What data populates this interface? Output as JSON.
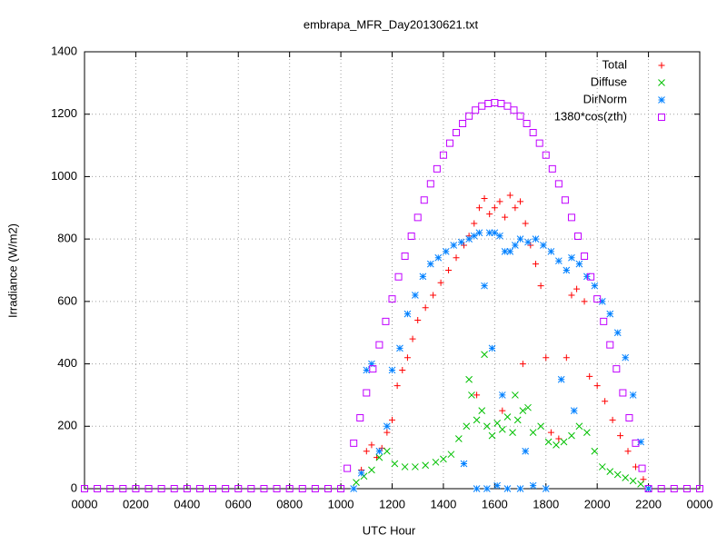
{
  "chart_data": {
    "type": "scatter",
    "title": "embrapa_MFR_Day20130621.txt",
    "xlabel": "UTC Hour",
    "ylabel": "Irradiance (W/m2)",
    "xlim": [
      0,
      24
    ],
    "ylim": [
      0,
      1400
    ],
    "xticks": [
      {
        "value": 0,
        "label": "0000"
      },
      {
        "value": 2,
        "label": "0200"
      },
      {
        "value": 4,
        "label": "0400"
      },
      {
        "value": 6,
        "label": "0600"
      },
      {
        "value": 8,
        "label": "0800"
      },
      {
        "value": 10,
        "label": "1000"
      },
      {
        "value": 12,
        "label": "1200"
      },
      {
        "value": 14,
        "label": "1400"
      },
      {
        "value": 16,
        "label": "1600"
      },
      {
        "value": 18,
        "label": "1800"
      },
      {
        "value": 20,
        "label": "2000"
      },
      {
        "value": 22,
        "label": "2200"
      },
      {
        "value": 24,
        "label": "0000"
      }
    ],
    "yticks": [
      0,
      200,
      400,
      600,
      800,
      1000,
      1200,
      1400
    ],
    "grid": true,
    "legend": "upper right",
    "series": [
      {
        "name": "Total",
        "color": "#ff0000",
        "marker": "plus",
        "x": [
          10.8,
          11.0,
          11.2,
          11.4,
          11.6,
          11.8,
          12.0,
          12.2,
          12.4,
          12.6,
          12.8,
          13.0,
          13.3,
          13.6,
          13.9,
          14.2,
          14.5,
          14.8,
          15.0,
          15.2,
          15.4,
          15.6,
          15.8,
          16.0,
          16.2,
          16.4,
          16.6,
          16.8,
          17.0,
          17.2,
          17.4,
          17.6,
          17.8,
          18.0,
          18.2,
          18.5,
          18.8,
          19.0,
          19.2,
          19.5,
          19.7,
          20.0,
          20.3,
          20.6,
          20.9,
          21.2,
          21.5,
          21.8,
          22.0,
          15.3,
          16.3,
          17.1
        ],
        "values": [
          60,
          120,
          140,
          100,
          130,
          180,
          220,
          330,
          380,
          420,
          480,
          540,
          580,
          620,
          660,
          700,
          740,
          780,
          810,
          850,
          900,
          930,
          880,
          900,
          920,
          870,
          940,
          900,
          920,
          850,
          780,
          720,
          650,
          420,
          180,
          160,
          420,
          620,
          640,
          600,
          360,
          330,
          280,
          220,
          170,
          120,
          70,
          30,
          0,
          300,
          250,
          400
        ]
      },
      {
        "name": "Diffuse",
        "color": "#00c000",
        "marker": "cross",
        "x": [
          10.6,
          10.9,
          11.2,
          11.5,
          11.8,
          12.1,
          12.5,
          12.9,
          13.3,
          13.7,
          14.0,
          14.3,
          14.6,
          14.9,
          15.1,
          15.3,
          15.5,
          15.7,
          15.9,
          16.1,
          16.3,
          16.5,
          16.7,
          16.9,
          17.1,
          17.3,
          17.5,
          17.8,
          18.1,
          18.4,
          18.7,
          19.0,
          19.3,
          19.6,
          19.9,
          20.2,
          20.5,
          20.8,
          21.1,
          21.4,
          21.7,
          22.0,
          15.0,
          15.6,
          16.8
        ],
        "values": [
          20,
          40,
          60,
          100,
          120,
          80,
          70,
          70,
          75,
          85,
          95,
          110,
          160,
          200,
          300,
          220,
          250,
          200,
          170,
          210,
          190,
          230,
          180,
          220,
          250,
          260,
          180,
          200,
          150,
          140,
          150,
          170,
          200,
          180,
          120,
          70,
          55,
          45,
          35,
          25,
          15,
          0,
          350,
          430,
          300
        ]
      },
      {
        "name": "DirNorm",
        "color": "#0080ff",
        "marker": "star",
        "x": [
          10.5,
          10.8,
          11.0,
          11.2,
          11.5,
          11.8,
          12.0,
          12.3,
          12.6,
          12.9,
          13.2,
          13.5,
          13.8,
          14.1,
          14.4,
          14.7,
          15.0,
          15.2,
          15.4,
          15.6,
          15.8,
          16.0,
          16.2,
          16.4,
          16.6,
          16.8,
          17.0,
          17.3,
          17.6,
          17.9,
          18.2,
          18.5,
          18.8,
          19.0,
          19.3,
          19.6,
          19.9,
          20.2,
          20.5,
          20.8,
          21.1,
          21.4,
          21.7,
          22.0,
          15.3,
          15.7,
          16.1,
          16.5,
          17.0,
          17.5,
          18.0,
          14.8,
          15.9,
          16.3,
          17.2,
          18.6,
          19.1
        ],
        "values": [
          0,
          50,
          380,
          400,
          120,
          200,
          380,
          450,
          560,
          620,
          680,
          720,
          740,
          760,
          780,
          790,
          800,
          810,
          820,
          650,
          820,
          820,
          810,
          760,
          760,
          780,
          800,
          790,
          800,
          780,
          760,
          730,
          700,
          740,
          720,
          680,
          650,
          600,
          560,
          500,
          420,
          300,
          150,
          0,
          0,
          0,
          10,
          0,
          0,
          10,
          0,
          80,
          450,
          300,
          120,
          350,
          250
        ]
      },
      {
        "name": "1380*cos(zth)",
        "color": "#c000ff",
        "marker": "square",
        "x": [
          0,
          0.5,
          1,
          1.5,
          2,
          2.5,
          3,
          3.5,
          4,
          4.5,
          5,
          5.5,
          6,
          6.5,
          7,
          7.5,
          8,
          8.5,
          9,
          9.5,
          10,
          10.25,
          10.5,
          10.75,
          11,
          11.25,
          11.5,
          11.75,
          12,
          12.25,
          12.5,
          12.75,
          13,
          13.25,
          13.5,
          13.75,
          14,
          14.25,
          14.5,
          14.75,
          15,
          15.25,
          15.5,
          15.75,
          16,
          16.25,
          16.5,
          16.75,
          17,
          17.25,
          17.5,
          17.75,
          18,
          18.25,
          18.5,
          18.75,
          19,
          19.25,
          19.5,
          19.75,
          20,
          20.25,
          20.5,
          20.75,
          21,
          21.25,
          21.5,
          21.75,
          22,
          22.5,
          23,
          23.5,
          24
        ],
        "values": [
          0,
          0,
          0,
          0,
          0,
          0,
          0,
          0,
          0,
          0,
          0,
          0,
          0,
          0,
          0,
          0,
          0,
          0,
          0,
          0,
          0,
          65,
          146,
          227,
          307,
          384,
          461,
          536,
          608,
          679,
          745,
          809,
          869,
          925,
          977,
          1025,
          1069,
          1107,
          1141,
          1170,
          1194,
          1213,
          1226,
          1234,
          1237,
          1234,
          1226,
          1213,
          1194,
          1170,
          1141,
          1107,
          1069,
          1025,
          977,
          925,
          869,
          809,
          745,
          679,
          608,
          536,
          461,
          384,
          307,
          227,
          146,
          65,
          0,
          0,
          0,
          0,
          0
        ]
      }
    ]
  }
}
